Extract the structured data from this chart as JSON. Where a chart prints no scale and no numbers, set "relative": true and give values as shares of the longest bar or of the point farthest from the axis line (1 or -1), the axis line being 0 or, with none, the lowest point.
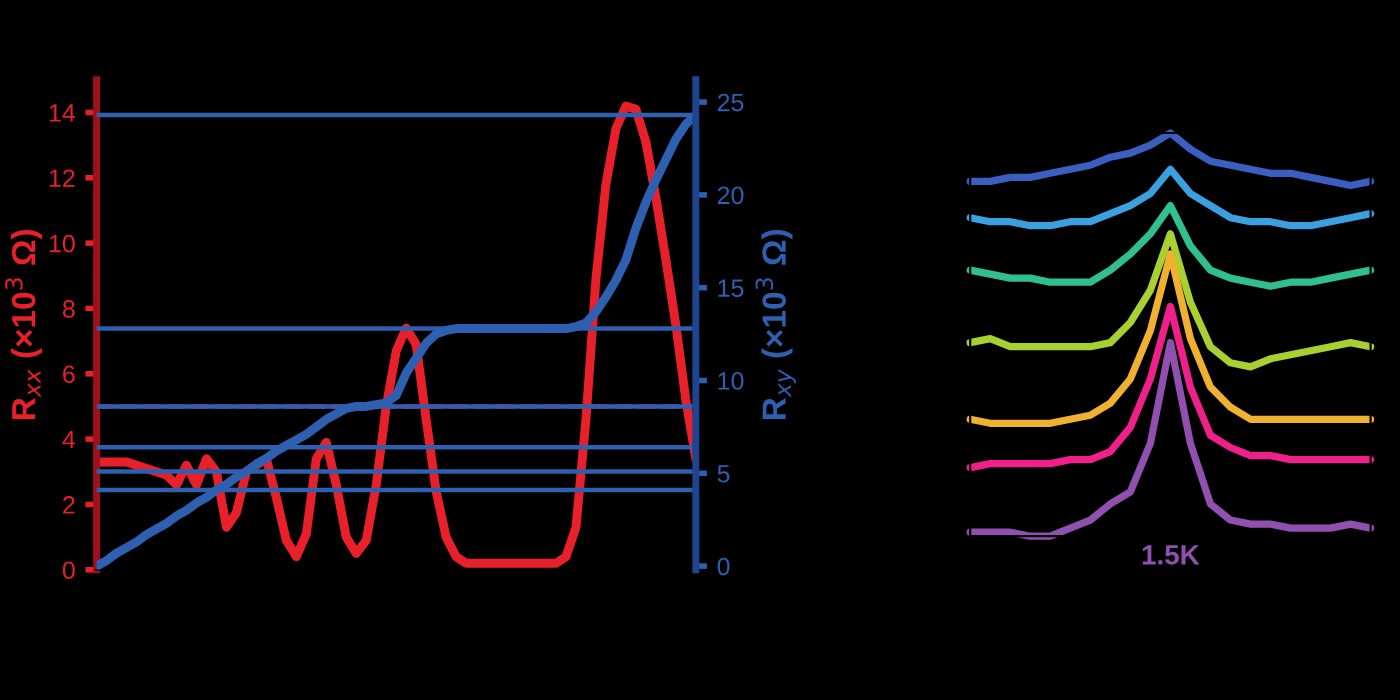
{
  "chart_data": [
    {
      "type": "line",
      "categories": [
        null,
        null,
        null,
        null,
        null,
        null,
        null,
        null,
        null,
        null,
        null,
        null,
        null,
        null,
        null,
        null,
        null,
        null,
        null,
        null,
        null,
        null,
        null,
        null,
        null,
        null,
        null,
        null,
        null,
        null,
        null,
        null,
        null,
        null,
        null,
        null,
        null,
        null,
        null,
        null,
        null,
        null,
        null,
        null,
        null,
        null,
        null,
        null,
        null,
        null,
        null,
        null,
        null,
        null,
        null,
        null,
        null,
        null,
        null,
        null,
        null
      ],
      "ylabel": "R$_{xx}$ (×10$^{3}$ Ω)",
      "y2label": "R$_{xy}$ (×10$^{3}$ Ω)",
      "ylim": [
        0,
        15
      ],
      "yticks": [
        0,
        2,
        4,
        6,
        8,
        10,
        12,
        14
      ],
      "y2lim": [
        -0.2,
        26.2
      ],
      "y2ticks": [
        0,
        5,
        10,
        15,
        20,
        25
      ],
      "grid": false,
      "series": [
        {
          "color": "#e8202a",
          "values": [
            3.3,
            3.3,
            3.3,
            3.3,
            3.2,
            3.1,
            3.0,
            2.9,
            2.6,
            3.2,
            2.6,
            3.4,
            3.0,
            1.3,
            1.75,
            3.0,
            3.2,
            3.4,
            2.2,
            0.9,
            0.4,
            1.1,
            3.4,
            3.9,
            2.6,
            1.0,
            0.5,
            0.9,
            2.6,
            5.0,
            6.7,
            7.4,
            6.9,
            4.6,
            2.4,
            1.0,
            0.4,
            0.2,
            0.2,
            0.2,
            0.2,
            0.2,
            0.2,
            0.2,
            0.2,
            0.2,
            0.2,
            0.4,
            1.3,
            4.6,
            8.9,
            11.8,
            13.5,
            14.2,
            14.1,
            13.1,
            11.4,
            9.5,
            7.5,
            5.2,
            3.4
          ]
        },
        {
          "color": "#2f5fb0",
          "axis": "y2",
          "values": [
            0,
            0.3,
            0.7,
            1.0,
            1.3,
            1.7,
            2.0,
            2.3,
            2.7,
            3.0,
            3.4,
            3.7,
            4.1,
            4.4,
            4.8,
            5.1,
            5.5,
            5.8,
            6.2,
            6.5,
            6.8,
            7.1,
            7.5,
            7.9,
            8.2,
            8.5,
            8.6,
            8.6,
            8.7,
            8.8,
            9.2,
            10.4,
            11.2,
            12.0,
            12.5,
            12.7,
            12.8,
            12.8,
            12.8,
            12.8,
            12.8,
            12.8,
            12.8,
            12.8,
            12.8,
            12.8,
            12.8,
            12.8,
            12.9,
            13.1,
            13.7,
            14.5,
            15.4,
            16.5,
            18.2,
            19.6,
            20.8,
            21.9,
            23.0,
            23.8,
            24.3
          ]
        }
      ],
      "ref_lines": [
        {
          "axis": "y2",
          "value": 24.3,
          "color": "#2f5fb0"
        },
        {
          "axis": "y2",
          "value": 12.8,
          "color": "#2f5fb0"
        },
        {
          "axis": "y2",
          "value": 8.6,
          "color": "#2f5fb0"
        },
        {
          "axis": "y2",
          "value": 6.4,
          "color": "#2f5fb0"
        },
        {
          "axis": "y2",
          "value": 5.1,
          "color": "#2f5fb0"
        },
        {
          "axis": "y2",
          "value": 4.1,
          "color": "#2f5fb0"
        },
        {
          "axis": "y",
          "value": 5.0,
          "color": "#e8202a",
          "line_style": "dashed"
        }
      ]
    },
    {
      "type": "line",
      "relative": true,
      "grid": false,
      "categories": [
        null,
        null,
        null,
        null,
        null,
        null,
        null,
        null,
        null,
        null,
        null,
        null,
        null,
        null,
        null,
        null,
        null,
        null,
        null,
        null,
        null
      ],
      "annotations": [
        "1.5K"
      ],
      "series": [
        {
          "color": "#3a5fc0",
          "values": [
            0.88,
            0.88,
            0.89,
            0.89,
            0.9,
            0.91,
            0.92,
            0.94,
            0.95,
            0.97,
            1.0,
            0.96,
            0.93,
            0.92,
            0.91,
            0.9,
            0.9,
            0.89,
            0.88,
            0.87,
            0.88
          ]
        },
        {
          "color": "#3aa0e0",
          "values": [
            0.79,
            0.78,
            0.78,
            0.77,
            0.77,
            0.78,
            0.78,
            0.8,
            0.82,
            0.85,
            0.91,
            0.85,
            0.82,
            0.79,
            0.78,
            0.78,
            0.77,
            0.77,
            0.78,
            0.79,
            0.8
          ]
        },
        {
          "color": "#30c090",
          "values": [
            0.66,
            0.65,
            0.64,
            0.64,
            0.63,
            0.63,
            0.63,
            0.66,
            0.7,
            0.75,
            0.82,
            0.72,
            0.66,
            0.64,
            0.63,
            0.62,
            0.63,
            0.63,
            0.64,
            0.65,
            0.66
          ]
        },
        {
          "color": "#a8d030",
          "values": [
            0.48,
            0.49,
            0.47,
            0.47,
            0.47,
            0.47,
            0.47,
            0.48,
            0.53,
            0.61,
            0.75,
            0.58,
            0.47,
            0.43,
            0.42,
            0.44,
            0.45,
            0.46,
            0.47,
            0.48,
            0.47
          ]
        },
        {
          "color": "#f0b030",
          "values": [
            0.29,
            0.28,
            0.28,
            0.28,
            0.28,
            0.29,
            0.3,
            0.33,
            0.39,
            0.51,
            0.7,
            0.49,
            0.37,
            0.32,
            0.29,
            0.29,
            0.29,
            0.29,
            0.29,
            0.29,
            0.29
          ]
        },
        {
          "color": "#f0208a",
          "values": [
            0.17,
            0.18,
            0.18,
            0.18,
            0.18,
            0.19,
            0.19,
            0.21,
            0.27,
            0.39,
            0.57,
            0.37,
            0.25,
            0.22,
            0.2,
            0.2,
            0.19,
            0.19,
            0.19,
            0.19,
            0.19
          ]
        },
        {
          "color": "#9050b0",
          "values": [
            0.01,
            0.01,
            0.01,
            0.0,
            0.0,
            0.02,
            0.04,
            0.08,
            0.11,
            0.23,
            0.48,
            0.23,
            0.08,
            0.04,
            0.03,
            0.03,
            0.02,
            0.02,
            0.02,
            0.03,
            0.02
          ]
        }
      ]
    }
  ]
}
